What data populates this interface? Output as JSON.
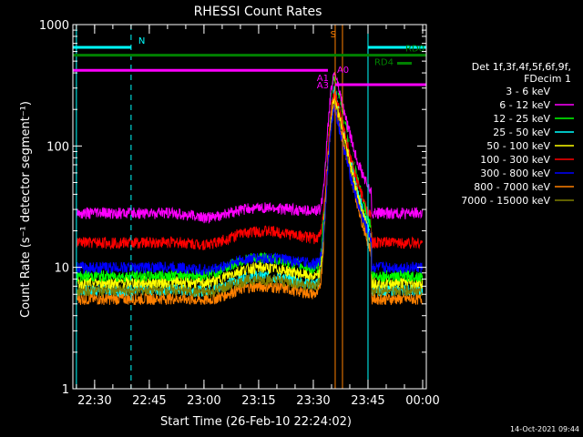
{
  "chart_data": {
    "type": "line",
    "title": "RHESSI Count Rates",
    "xlabel": "Start Time (26-Feb-10 22:24:02)",
    "ylabel": "Count Rate (s⁻¹ detector segment⁻¹)",
    "y_scale": "log",
    "ylim": [
      1,
      1000
    ],
    "xlim": [
      "22:24:02",
      "00:01:00"
    ],
    "x_ticks": [
      "22:30",
      "22:45",
      "23:00",
      "23:15",
      "23:30",
      "23:45",
      "00:00"
    ],
    "y_ticks": [
      "1",
      "10",
      "100",
      "1000"
    ],
    "legend_position": "right",
    "legend_header": [
      "Det 1f,3f,4f,5f,6f,9f,",
      "FDecim 1"
    ],
    "series": [
      {
        "name": "3 - 6 keV",
        "color": "#000000",
        "baseline": 20,
        "hump": 24,
        "peak": 330
      },
      {
        "name": "6 - 12 keV",
        "color": "#ff00ff",
        "baseline": 28,
        "hump": 31,
        "peak": 400
      },
      {
        "name": "12 - 25 keV",
        "color": "#00ff00",
        "baseline": 8.5,
        "hump": 12,
        "peak": 360
      },
      {
        "name": "25 - 50 keV",
        "color": "#00ffff",
        "baseline": 6.5,
        "hump": 8.5,
        "peak": 300
      },
      {
        "name": "50 - 100 keV",
        "color": "#ffff00",
        "baseline": 7.5,
        "hump": 10,
        "peak": 260
      },
      {
        "name": "100 - 300 keV",
        "color": "#ff0000",
        "baseline": 16,
        "hump": 20,
        "peak": 280
      },
      {
        "name": "300 - 800 keV",
        "color": "#0000ff",
        "baseline": 10,
        "hump": 12,
        "peak": 200
      },
      {
        "name": "800 - 7000 keV",
        "color": "#ff8000",
        "baseline": 5.5,
        "hump": 7,
        "peak": 220
      },
      {
        "name": "7000 - 15000 keV",
        "color": "#808000",
        "baseline": 6.5,
        "hump": 8,
        "peak": 240
      }
    ],
    "flare_time": "23:36",
    "hump_time": "23:15",
    "annotation_bars": [
      {
        "label": "N",
        "color": "#00ffff",
        "y": 650,
        "x0": "22:24:02",
        "x1": "22:40"
      },
      {
        "label": "",
        "color": "#00ffff",
        "y": 650,
        "x0": "23:45",
        "x1": "00:01:00"
      },
      {
        "label": "RD0",
        "color": "#008000",
        "y": 560,
        "x0": "22:24:02",
        "x1": "00:01:00"
      },
      {
        "label": "RD4",
        "color": "#008000",
        "y": 480,
        "x0": "23:53",
        "x1": "23:57"
      },
      {
        "label": "",
        "color": "#ff00ff",
        "y": 420,
        "x0": "22:24:02",
        "x1": "23:34"
      },
      {
        "label": "",
        "color": "#ff00ff",
        "y": 320,
        "x0": "23:36",
        "x1": "00:01:00"
      }
    ],
    "markers": [
      {
        "label": "S",
        "color": "#ff8000",
        "x": "23:37"
      },
      {
        "label": "A0",
        "color": "#ff00ff",
        "x": "23:36"
      },
      {
        "label": "A1",
        "color": "#ff00ff",
        "x": "23:35"
      },
      {
        "label": "A3",
        "color": "#ff00ff",
        "x": "23:35"
      }
    ],
    "night_lines": [
      "22:40",
      "00:01:00"
    ],
    "saa_lines": [
      "22:25",
      "23:45"
    ],
    "orange_vlines": [
      "23:36",
      "23:38"
    ]
  },
  "footer": {
    "timestamp": "14-Oct-2021 09:44"
  }
}
